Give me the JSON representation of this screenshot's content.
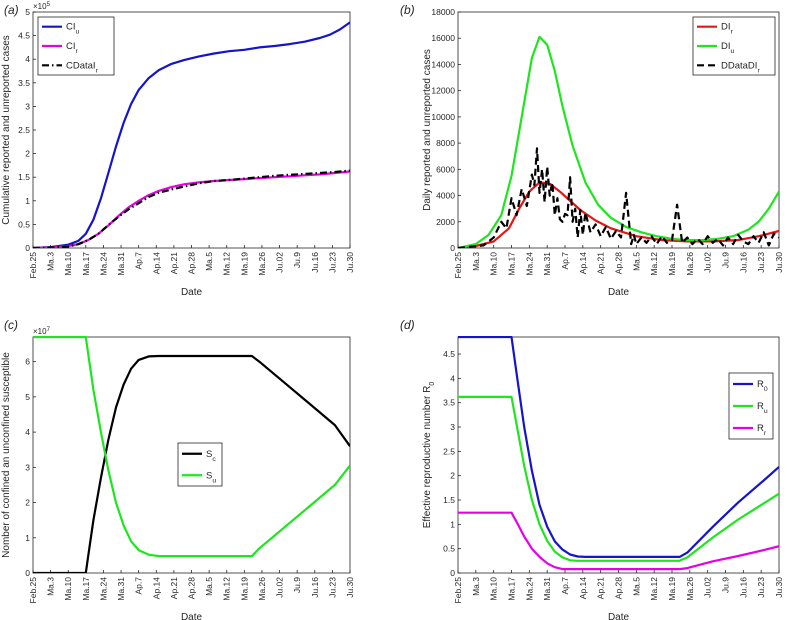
{
  "figure": {
    "date_ticks": [
      "Feb.25",
      "Ma.3",
      "Ma.10",
      "Ma.17",
      "Ma.24",
      "Ma.31",
      "Ap.7",
      "Ap.14",
      "Ap.21",
      "Ap.28",
      "Ma.5",
      "Ma.12",
      "Ma.19",
      "Ma.26",
      "Ju.02",
      "Ju.9",
      "Ju.16",
      "Ju.23",
      "Ju.30"
    ]
  },
  "chart_data": [
    {
      "panel": "(a)",
      "type": "line",
      "xlabel": "Date",
      "ylabel": "Cumulative reported and unreported cases",
      "y_exponent": "×10^5",
      "ylim": [
        0,
        5
      ],
      "yticks": [
        0,
        0.5,
        1,
        1.5,
        2,
        2.5,
        3,
        3.5,
        4,
        4.5,
        5
      ],
      "x_index_range": [
        0,
        126
      ],
      "legend": "top-left",
      "series": [
        {
          "name": "CI_u",
          "color": "#1414cc",
          "style": "solid",
          "x": [
            0,
            7,
            14,
            18,
            21,
            24,
            27,
            30,
            33,
            36,
            39,
            42,
            46,
            50,
            55,
            60,
            66,
            72,
            78,
            84,
            90,
            96,
            102,
            108,
            114,
            118,
            122,
            126
          ],
          "y": [
            0,
            0.02,
            0.07,
            0.15,
            0.3,
            0.6,
            1.05,
            1.6,
            2.15,
            2.65,
            3.05,
            3.35,
            3.6,
            3.77,
            3.9,
            3.98,
            4.06,
            4.12,
            4.17,
            4.2,
            4.25,
            4.28,
            4.32,
            4.37,
            4.45,
            4.52,
            4.63,
            4.78
          ]
        },
        {
          "name": "CI_r",
          "color": "#e600e6",
          "style": "solid",
          "x": [
            0,
            7,
            14,
            18,
            22,
            26,
            30,
            34,
            38,
            42,
            46,
            50,
            55,
            60,
            66,
            72,
            78,
            84,
            90,
            96,
            102,
            108,
            114,
            120,
            126
          ],
          "y": [
            0,
            0.01,
            0.04,
            0.08,
            0.17,
            0.3,
            0.48,
            0.68,
            0.86,
            1.0,
            1.12,
            1.21,
            1.29,
            1.35,
            1.39,
            1.42,
            1.44,
            1.46,
            1.48,
            1.5,
            1.52,
            1.54,
            1.56,
            1.59,
            1.62
          ]
        },
        {
          "name": "CDataI_r",
          "color": "#000000",
          "style": "dashdot",
          "x": [
            0,
            7,
            14,
            18,
            22,
            26,
            30,
            34,
            38,
            42,
            46,
            50,
            55,
            60,
            66,
            72,
            78,
            84,
            90,
            96,
            102,
            108,
            114,
            120,
            126
          ],
          "y": [
            0,
            0.01,
            0.03,
            0.08,
            0.17,
            0.3,
            0.49,
            0.66,
            0.82,
            0.95,
            1.08,
            1.17,
            1.24,
            1.3,
            1.37,
            1.42,
            1.44,
            1.47,
            1.5,
            1.53,
            1.55,
            1.57,
            1.59,
            1.61,
            1.64
          ]
        }
      ]
    },
    {
      "panel": "(b)",
      "type": "line",
      "xlabel": "Date",
      "ylabel": "Daily reported and unreported cases",
      "ylim": [
        0,
        18000
      ],
      "yticks": [
        0,
        2000,
        4000,
        6000,
        8000,
        10000,
        12000,
        14000,
        16000,
        18000
      ],
      "x_index_range": [
        0,
        126
      ],
      "legend": "top-right",
      "series": [
        {
          "name": "DI_r",
          "color": "#e61414",
          "style": "solid",
          "x": [
            0,
            7,
            14,
            20,
            24,
            28,
            32,
            36,
            40,
            44,
            48,
            54,
            60,
            70,
            80,
            90,
            100,
            110,
            118,
            126
          ],
          "y": [
            0,
            150,
            500,
            1500,
            3000,
            4300,
            5000,
            4900,
            4300,
            3600,
            2900,
            2100,
            1500,
            900,
            600,
            500,
            500,
            600,
            900,
            1300
          ]
        },
        {
          "name": "DI_u",
          "color": "#1ee61e",
          "style": "solid",
          "x": [
            0,
            7,
            12,
            17,
            21,
            25,
            29,
            32,
            35,
            38,
            41,
            45,
            50,
            55,
            60,
            66,
            72,
            78,
            84,
            90,
            96,
            102,
            108,
            114,
            118,
            122,
            126
          ],
          "y": [
            0,
            300,
            1000,
            2500,
            5500,
            10000,
            14500,
            16100,
            15500,
            13500,
            10800,
            7800,
            5000,
            3300,
            2300,
            1600,
            1200,
            900,
            700,
            600,
            600,
            700,
            900,
            1400,
            2000,
            3000,
            4300
          ]
        },
        {
          "name": "DDataDI_r",
          "color": "#000000",
          "style": "dashed",
          "x": [
            0,
            5,
            10,
            14,
            17,
            19,
            21,
            23,
            25,
            27,
            29,
            30,
            31,
            32,
            33,
            34,
            35,
            36,
            37,
            38,
            39,
            40,
            41,
            42,
            43,
            44,
            45,
            46,
            47,
            48,
            49,
            50,
            52,
            54,
            56,
            58,
            60,
            62,
            64,
            66,
            68,
            69,
            70,
            72,
            74,
            76,
            78,
            80,
            82,
            84,
            86,
            88,
            90,
            92,
            94,
            96,
            98,
            100,
            102,
            104,
            106,
            108,
            110,
            112,
            114,
            116,
            118,
            120,
            122,
            124,
            126
          ],
          "y": [
            0,
            100,
            200,
            800,
            2000,
            1500,
            3800,
            2500,
            4500,
            3200,
            5600,
            4800,
            7600,
            4200,
            6000,
            3500,
            6200,
            4000,
            5000,
            2500,
            3800,
            2200,
            2000,
            2600,
            2500,
            5400,
            2000,
            3000,
            800,
            2900,
            1000,
            2700,
            1200,
            1800,
            900,
            1600,
            700,
            1300,
            800,
            4200,
            300,
            1000,
            300,
            800,
            400,
            900,
            300,
            900,
            400,
            600,
            3300,
            400,
            800,
            300,
            700,
            300,
            900,
            400,
            700,
            200,
            800,
            300,
            1000,
            500,
            300,
            900,
            400,
            1200,
            200,
            1100,
            800
          ]
        }
      ]
    },
    {
      "panel": "(c)",
      "type": "line",
      "xlabel": "Date",
      "ylabel": "Nomber of confined an unconfined susceptible",
      "y_exponent": "×10^7",
      "ylim": [
        0,
        6.7
      ],
      "yticks": [
        0,
        1,
        2,
        3,
        4,
        5,
        6
      ],
      "x_index_range": [
        0,
        126
      ],
      "legend": "center",
      "series": [
        {
          "name": "S_c",
          "color": "#000000",
          "style": "solid",
          "x": [
            0,
            21,
            22,
            24,
            27,
            30,
            33,
            36,
            39,
            42,
            46,
            50,
            53,
            60,
            70,
            80,
            87,
            90,
            100,
            110,
            120,
            126
          ],
          "y": [
            0,
            0,
            0.5,
            1.5,
            2.7,
            3.8,
            4.7,
            5.35,
            5.8,
            6.05,
            6.15,
            6.16,
            6.16,
            6.16,
            6.16,
            6.16,
            6.16,
            6.0,
            5.4,
            4.8,
            4.2,
            3.6
          ]
        },
        {
          "name": "S_u",
          "color": "#1ee61e",
          "style": "solid",
          "x": [
            0,
            21,
            22,
            24,
            27,
            30,
            33,
            36,
            39,
            42,
            46,
            50,
            53,
            60,
            70,
            80,
            87,
            90,
            100,
            110,
            120,
            126
          ],
          "y": [
            6.7,
            6.7,
            6.2,
            5.2,
            4.0,
            2.9,
            2.0,
            1.35,
            0.9,
            0.65,
            0.52,
            0.48,
            0.48,
            0.48,
            0.48,
            0.48,
            0.48,
            0.7,
            1.3,
            1.9,
            2.5,
            3.05
          ]
        }
      ]
    },
    {
      "panel": "(d)",
      "type": "line",
      "xlabel": "Date",
      "ylabel": "Effective reproductive number R_0",
      "ylim": [
        0,
        4.85
      ],
      "yticks": [
        0,
        0.5,
        1,
        1.5,
        2,
        2.5,
        3,
        3.5,
        4,
        4.5
      ],
      "x_index_range": [
        0,
        126
      ],
      "legend": "right",
      "series": [
        {
          "name": "R_0",
          "color": "#1414cc",
          "style": "solid",
          "x": [
            0,
            21,
            23,
            26,
            29,
            32,
            35,
            38,
            41,
            44,
            47,
            50,
            87,
            90,
            100,
            110,
            120,
            126
          ],
          "y": [
            4.85,
            4.85,
            4.1,
            3.0,
            2.1,
            1.4,
            0.95,
            0.65,
            0.48,
            0.38,
            0.34,
            0.33,
            0.33,
            0.42,
            0.95,
            1.45,
            1.9,
            2.18
          ]
        },
        {
          "name": "R_u",
          "color": "#1ee61e",
          "style": "solid",
          "x": [
            0,
            21,
            23,
            26,
            29,
            32,
            35,
            38,
            41,
            44,
            47,
            50,
            87,
            90,
            100,
            110,
            120,
            126
          ],
          "y": [
            3.62,
            3.62,
            3.05,
            2.2,
            1.5,
            1.0,
            0.66,
            0.44,
            0.32,
            0.26,
            0.25,
            0.25,
            0.25,
            0.32,
            0.73,
            1.1,
            1.43,
            1.63
          ]
        },
        {
          "name": "R_r",
          "color": "#e600e6",
          "style": "solid",
          "x": [
            0,
            21,
            23,
            26,
            29,
            32,
            35,
            38,
            41,
            44,
            47,
            50,
            87,
            90,
            100,
            110,
            120,
            126
          ],
          "y": [
            1.24,
            1.24,
            1.05,
            0.75,
            0.5,
            0.33,
            0.2,
            0.12,
            0.08,
            0.08,
            0.08,
            0.08,
            0.08,
            0.1,
            0.24,
            0.35,
            0.47,
            0.55
          ]
        }
      ]
    }
  ]
}
